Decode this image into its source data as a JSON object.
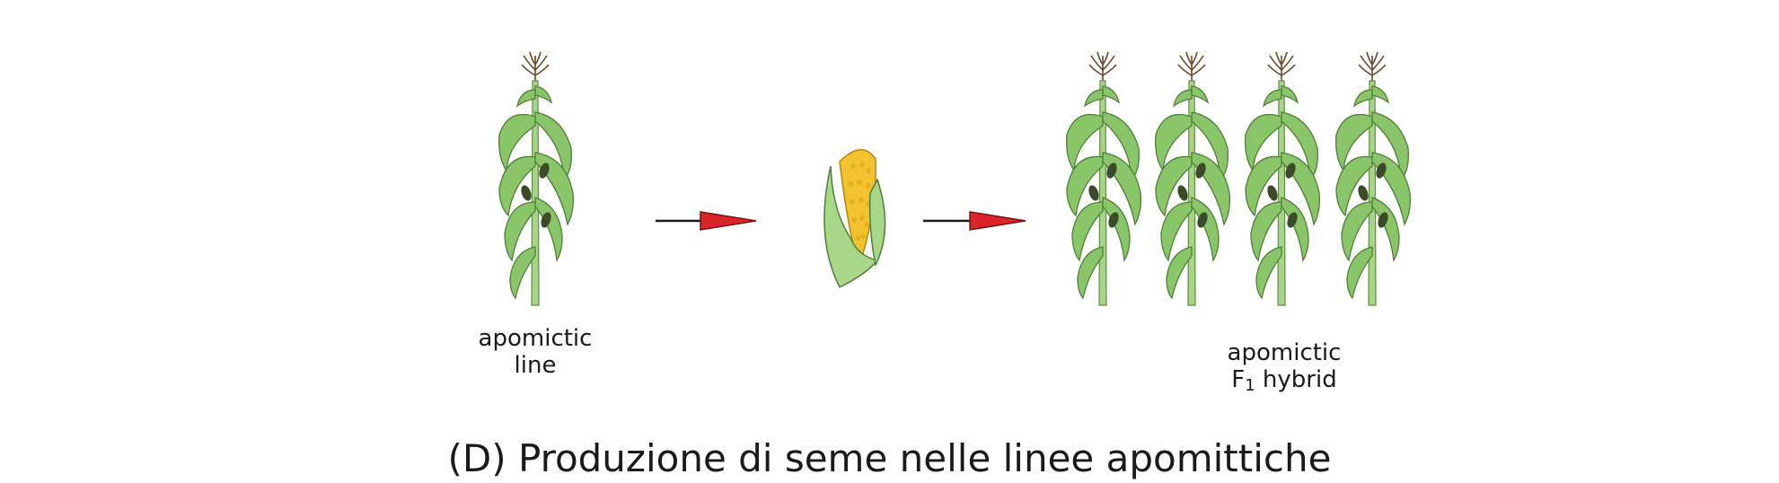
{
  "labels": {
    "parent_line": [
      "apomictic",
      "line"
    ],
    "hybrid": {
      "line1": "apomictic",
      "prefix": "F",
      "subscript": "1",
      "suffix": " hybrid"
    }
  },
  "caption": "(D) Produzione di seme nelle linee apomittiche",
  "colors": {
    "leaf": "#8bc56a",
    "leaf_dark": "#5f9a45",
    "stalk": "#9fce7c",
    "tassel": "#7a5a3c",
    "kernel": "#f2c230",
    "husk": "#a9d78a",
    "arrow": "#d9252a"
  },
  "icons": [
    "maize-plant-icon",
    "arrow-right-icon",
    "maize-ear-icon"
  ]
}
